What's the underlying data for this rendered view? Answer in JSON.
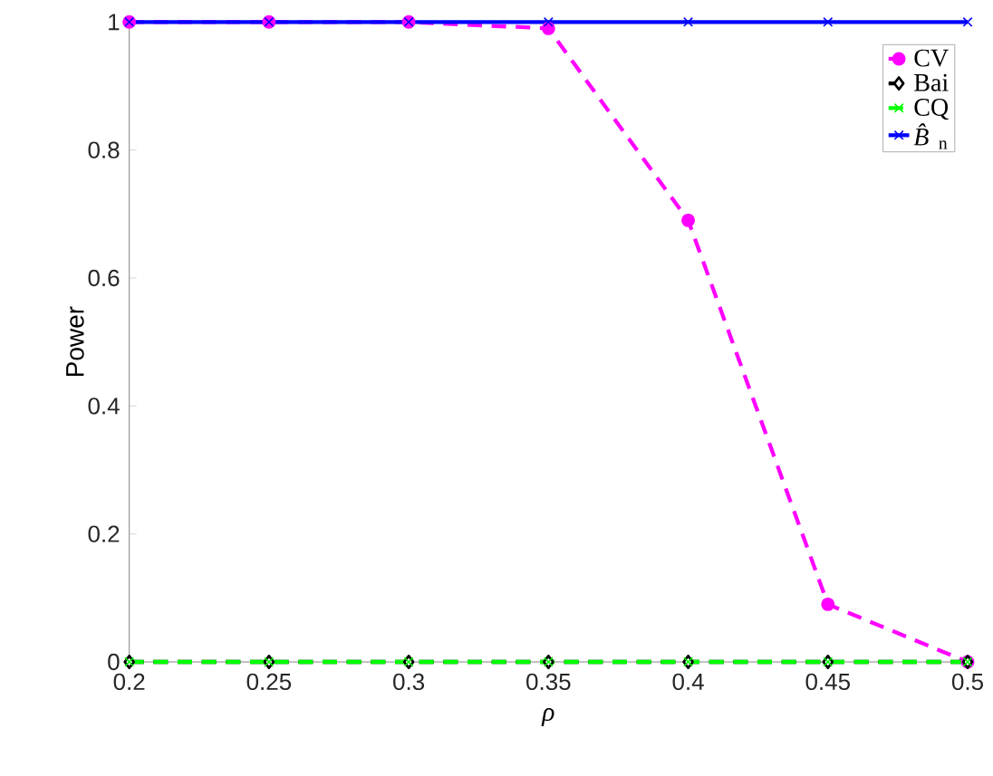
{
  "chart_data": {
    "type": "line",
    "xlabel": "*ρ*",
    "ylabel": "Power",
    "x": [
      0.2,
      0.25,
      0.3,
      0.35,
      0.4,
      0.45,
      0.5
    ],
    "series": [
      {
        "name": "CV",
        "color": "#ff00ff",
        "marker": "circle",
        "line_style": "dashed",
        "values": [
          1,
          1,
          1,
          0.99,
          0.69,
          0.09,
          0
        ]
      },
      {
        "name": "Bai",
        "color": "#000000",
        "marker": "diamond",
        "line_style": "dashed",
        "values": [
          0,
          0,
          0,
          0,
          0,
          0,
          0
        ]
      },
      {
        "name": "CQ",
        "color": "#00ff00",
        "marker": "cross",
        "line_style": "dashed",
        "values": [
          0,
          0,
          0,
          0,
          0,
          0,
          0
        ]
      },
      {
        "name": "*B̂*$_{n}$",
        "color": "#0000ff",
        "marker": "cross",
        "line_style": "solid",
        "values": [
          1,
          1,
          1,
          1,
          1,
          1,
          1
        ]
      }
    ],
    "xlim": [
      0.2,
      0.5
    ],
    "ylim": [
      0,
      1
    ],
    "xticks": [
      0.2,
      0.25,
      0.3,
      0.35,
      0.4,
      0.45,
      0.5
    ],
    "yticks": [
      0,
      0.2,
      0.4,
      0.6,
      0.8,
      1
    ],
    "grid": false,
    "legend": "top right"
  }
}
